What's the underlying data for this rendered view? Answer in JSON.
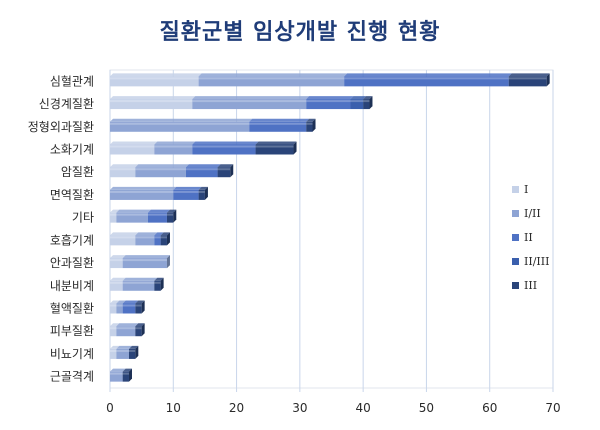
{
  "chart_data": {
    "type": "bar",
    "orientation": "horizontal",
    "stacked": true,
    "title": "질환군별 임상개발 진행 현황",
    "categories": [
      "심혈관계",
      "신경계질환",
      "정형외과질환",
      "소화기계",
      "암질환",
      "면역질환",
      "기타",
      "호흡기계",
      "안과질환",
      "내분비계",
      "혈액질환",
      "피부질환",
      "비뇨기계",
      "근골격계"
    ],
    "series": [
      {
        "name": "I",
        "color": "#c5d1e8",
        "values": [
          14,
          13,
          0,
          7,
          4,
          0,
          1,
          4,
          2,
          2,
          1,
          1,
          1,
          0
        ]
      },
      {
        "name": "I/II",
        "color": "#8ea4d4",
        "values": [
          23,
          18,
          22,
          6,
          8,
          10,
          5,
          3,
          7,
          5,
          1,
          3,
          2,
          2
        ]
      },
      {
        "name": "II",
        "color": "#4f72c4",
        "values": [
          26,
          7,
          9,
          10,
          5,
          4,
          3,
          1,
          0,
          0,
          2,
          0,
          0,
          0
        ]
      },
      {
        "name": "II/III",
        "color": "#3a5fad",
        "values": [
          0,
          2,
          0,
          0,
          0,
          0,
          0,
          0,
          0,
          0,
          0,
          0,
          0,
          0
        ]
      },
      {
        "name": "III",
        "color": "#2a4479",
        "values": [
          6,
          1,
          1,
          6,
          2,
          1,
          1,
          1,
          0,
          1,
          1,
          1,
          1,
          1
        ]
      }
    ],
    "xlim": [
      0,
      70
    ],
    "xticks": [
      "0",
      "10",
      "20",
      "30",
      "40",
      "50",
      "60",
      "70"
    ],
    "grid": true,
    "legend_position": "right"
  }
}
